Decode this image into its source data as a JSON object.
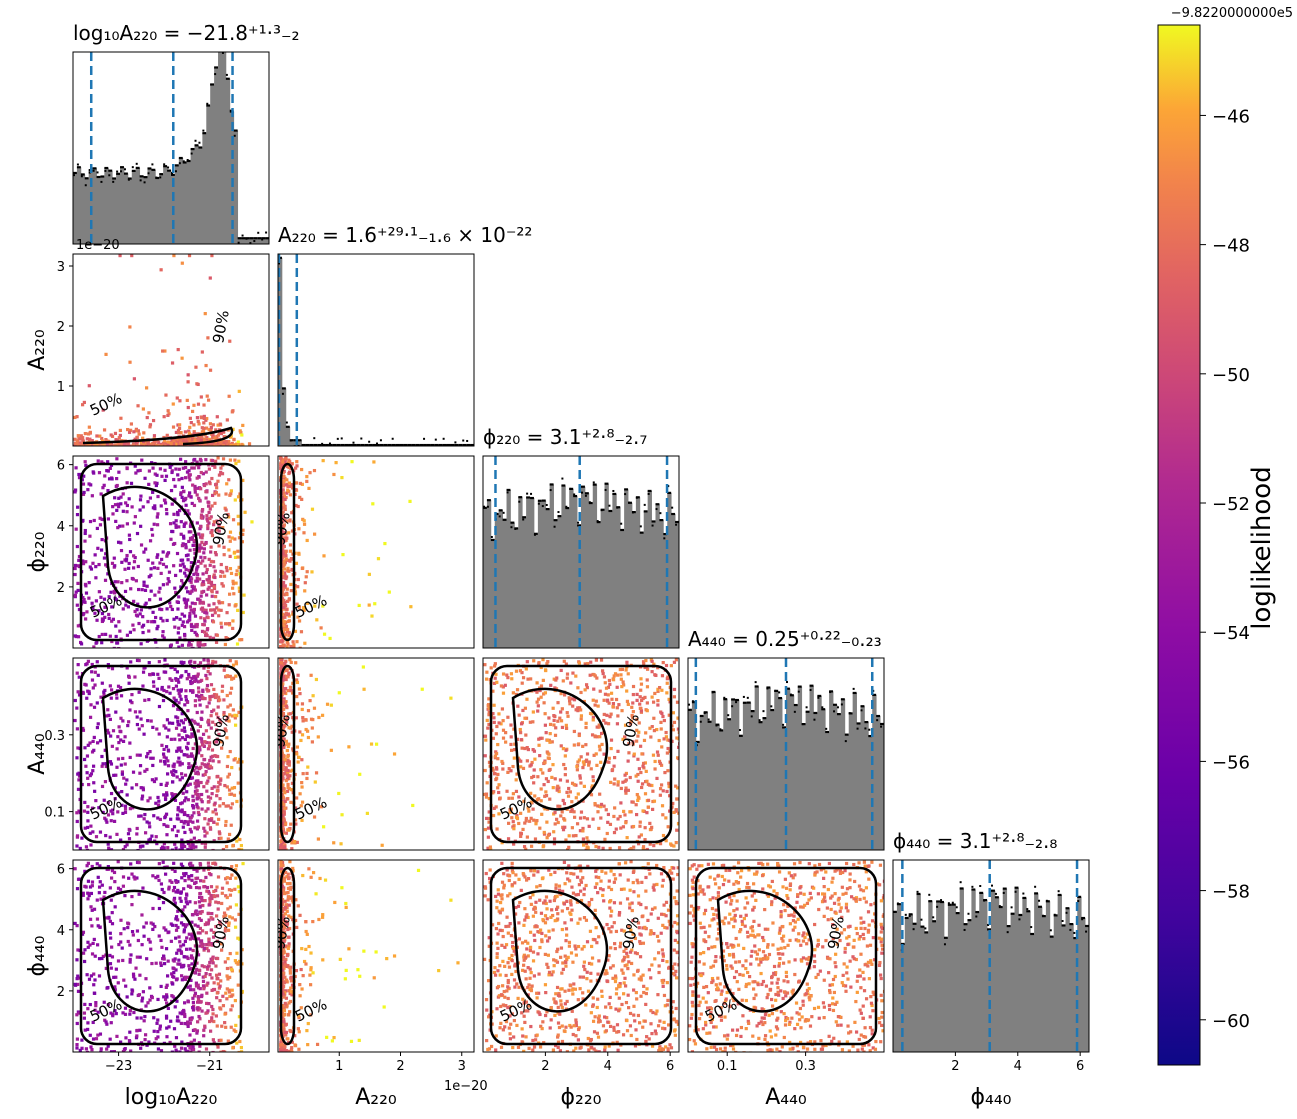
{
  "chart_data": {
    "type": "corner",
    "parameters": [
      {
        "key": "logA220",
        "label": "log₁₀A₂₂₀",
        "title": "log₁₀A₂₂₀ = −21.8⁺¹·³₋₂",
        "range": [
          -24,
          -19.7
        ],
        "quantiles": [
          -23.6,
          -21.8,
          -20.5
        ],
        "ticks": [
          -23,
          -21
        ]
      },
      {
        "key": "A220",
        "label": "A₂₂₀",
        "title": "A₂₂₀ = 1.6⁺²⁹·¹₋₁.₆ × 10⁻²²",
        "range": [
          0,
          3.2
        ],
        "offset": "1e−20",
        "quantiles": [
          0.0,
          0.016,
          0.307
        ],
        "ticks": [
          1,
          2,
          3
        ]
      },
      {
        "key": "phi220",
        "label": "ϕ₂₂₀",
        "title": "ϕ₂₂₀ = 3.1⁺²·⁸₋₂.₇",
        "range": [
          0,
          6.283
        ],
        "quantiles": [
          0.4,
          3.1,
          5.9
        ],
        "ticks": [
          2,
          4,
          6
        ]
      },
      {
        "key": "A440",
        "label": "A₄₄₀",
        "title": "A₄₄₀ = 0.25⁺⁰·²²₋₀.₂₃",
        "range": [
          0,
          0.5
        ],
        "quantiles": [
          0.02,
          0.25,
          0.47
        ],
        "ticks": [
          0.1,
          0.3
        ]
      },
      {
        "key": "phi440",
        "label": "ϕ₄₄₀",
        "title": "ϕ₄₄₀ = 3.1⁺²·⁸₋₂.₈",
        "range": [
          0,
          6.283
        ],
        "quantiles": [
          0.3,
          3.1,
          5.9
        ],
        "ticks": [
          2,
          4,
          6
        ]
      }
    ],
    "contour_labels": [
      "50%",
      "90%"
    ],
    "colorbar": {
      "label": "loglikelihood",
      "offset_text": "−9.8220000000e5",
      "range": [
        -60.7,
        -44.6
      ],
      "ticks": [
        -46,
        -48,
        -50,
        -52,
        -54,
        -56,
        -58,
        -60
      ],
      "tick_labels": [
        "−46",
        "−48",
        "−50",
        "−52",
        "−54",
        "−56",
        "−58",
        "−60"
      ],
      "colormap": "plasma"
    },
    "hist_fill": "#808080",
    "quantile_color": "#1f77b4"
  }
}
